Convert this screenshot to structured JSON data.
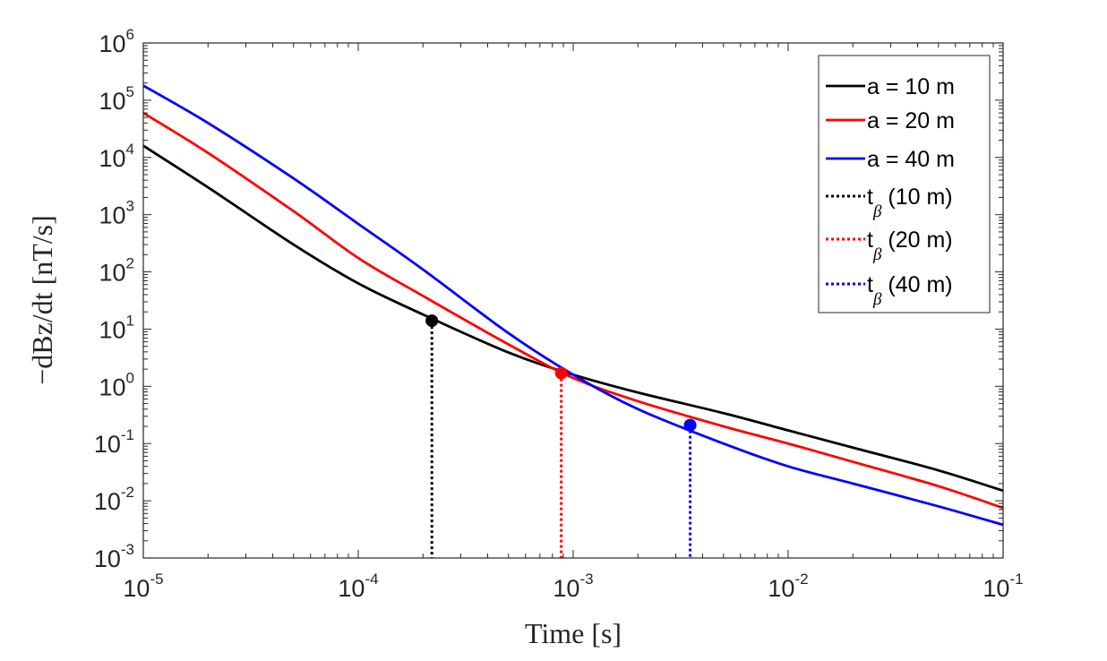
{
  "chart_data": {
    "type": "line",
    "xscale": "log",
    "yscale": "log",
    "xlim": [
      1e-05,
      0.1
    ],
    "ylim": [
      0.001,
      1000000
    ],
    "xlabel": "Time [s]",
    "ylabel": "−dBz/dt [nT/s]",
    "grid": false,
    "legend_position": "top-right",
    "x_ticks": [
      {
        "value": 1e-05,
        "base": "10",
        "exp": "-5"
      },
      {
        "value": 0.0001,
        "base": "10",
        "exp": "-4"
      },
      {
        "value": 0.001,
        "base": "10",
        "exp": "-3"
      },
      {
        "value": 0.01,
        "base": "10",
        "exp": "-2"
      },
      {
        "value": 0.1,
        "base": "10",
        "exp": "-1"
      }
    ],
    "y_ticks": [
      {
        "value": 0.001,
        "base": "10",
        "exp": "-3"
      },
      {
        "value": 0.01,
        "base": "10",
        "exp": "-2"
      },
      {
        "value": 0.1,
        "base": "10",
        "exp": "-1"
      },
      {
        "value": 1,
        "base": "10",
        "exp": "0"
      },
      {
        "value": 10,
        "base": "10",
        "exp": "1"
      },
      {
        "value": 100,
        "base": "10",
        "exp": "2"
      },
      {
        "value": 1000,
        "base": "10",
        "exp": "3"
      },
      {
        "value": 10000,
        "base": "10",
        "exp": "4"
      },
      {
        "value": 100000,
        "base": "10",
        "exp": "5"
      },
      {
        "value": 1000000,
        "base": "10",
        "exp": "6"
      }
    ],
    "series": [
      {
        "name": "a = 10 m",
        "color": "#000000",
        "style": "solid",
        "x": [
          1e-05,
          2e-05,
          5e-05,
          0.0001,
          0.0002,
          0.0005,
          0.001,
          0.002,
          0.005,
          0.01,
          0.02,
          0.05,
          0.1
        ],
        "y": [
          16000,
          3000,
          300,
          63,
          18,
          3.9,
          1.6,
          0.78,
          0.34,
          0.17,
          0.085,
          0.034,
          0.015
        ]
      },
      {
        "name": "a = 20 m",
        "color": "#ff0000",
        "style": "solid",
        "x": [
          1e-05,
          2e-05,
          5e-05,
          0.0001,
          0.0002,
          0.0005,
          0.001,
          0.002,
          0.005,
          0.01,
          0.02,
          0.05,
          0.1
        ],
        "y": [
          60000,
          12000,
          1150,
          175,
          38,
          5.4,
          1.4,
          0.55,
          0.2,
          0.1,
          0.048,
          0.018,
          0.0075
        ]
      },
      {
        "name": "a = 40 m",
        "color": "#0000ff",
        "style": "solid",
        "x": [
          1e-05,
          2e-05,
          5e-05,
          0.0001,
          0.0002,
          0.0005,
          0.001,
          0.002,
          0.005,
          0.01,
          0.02,
          0.05,
          0.1
        ],
        "y": [
          180000,
          40000,
          4300,
          690,
          110,
          8.5,
          1.6,
          0.4,
          0.1,
          0.04,
          0.02,
          0.008,
          0.0038
        ]
      }
    ],
    "markers": [
      {
        "name": "t",
        "sub": "β",
        "suffix": " (10 m)",
        "color": "#000000",
        "x": 0.00022,
        "y": 14
      },
      {
        "name": "t",
        "sub": "β",
        "suffix": " (20 m)",
        "color": "#ff0000",
        "x": 0.00088,
        "y": 1.7
      },
      {
        "name": "t",
        "sub": "β",
        "suffix": " (40 m)",
        "color": "#0000ff",
        "x": 0.0035,
        "y": 0.21
      }
    ]
  }
}
